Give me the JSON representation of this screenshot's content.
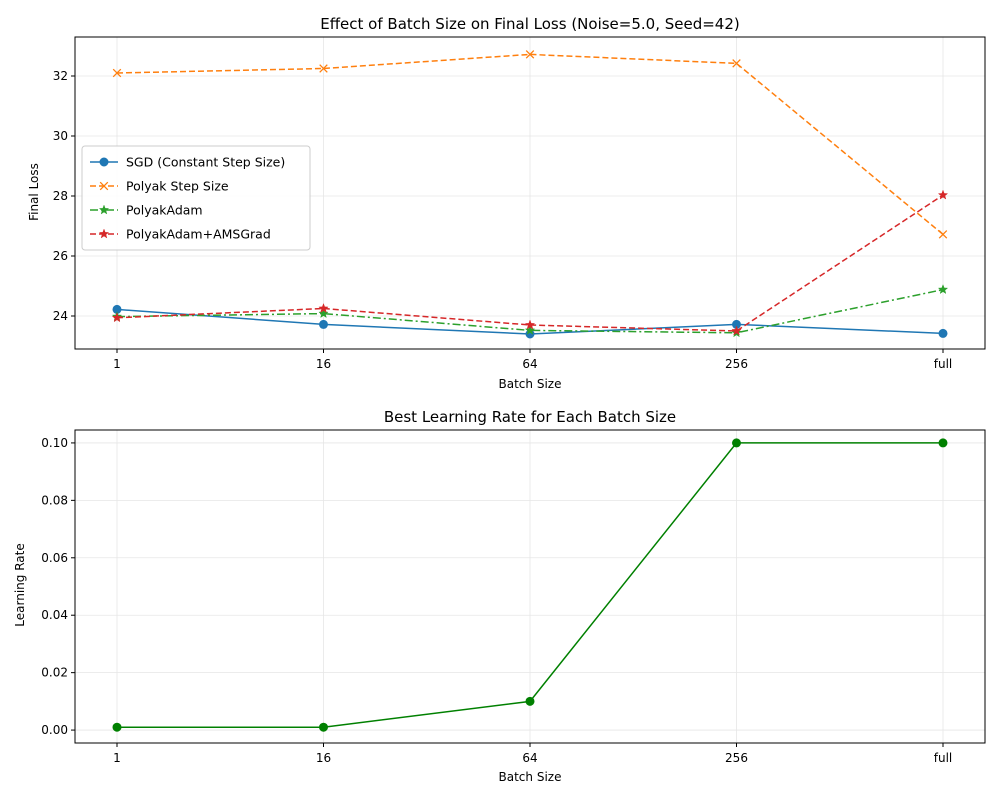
{
  "chart_data": [
    {
      "type": "line",
      "title": "Effect of Batch Size on Final Loss (Noise=5.0, Seed=42)",
      "xlabel": "Batch Size",
      "ylabel": "Final Loss",
      "categories": [
        "1",
        "16",
        "64",
        "256",
        "full"
      ],
      "ylim": [
        22.9,
        33.3
      ],
      "yticks": [
        24,
        26,
        28,
        30,
        32
      ],
      "grid": true,
      "legend_position": "center-left",
      "series": [
        {
          "name": "SGD (Constant Step Size)",
          "values": [
            24.22,
            23.72,
            23.4,
            23.72,
            23.42
          ],
          "color": "#1f77b4",
          "marker": "circle",
          "dash": "solid"
        },
        {
          "name": "Polyak Step Size",
          "values": [
            32.1,
            32.25,
            32.72,
            32.42,
            26.72
          ],
          "color": "#ff7f0e",
          "marker": "x",
          "dash": "dashed"
        },
        {
          "name": "PolyakAdam",
          "values": [
            23.98,
            24.08,
            23.52,
            23.44,
            24.88
          ],
          "color": "#2ca02c",
          "marker": "star",
          "dash": "dashdot"
        },
        {
          "name": "PolyakAdam+AMSGrad",
          "values": [
            23.94,
            24.25,
            23.7,
            23.5,
            28.03
          ],
          "color": "#d62728",
          "marker": "star",
          "dash": "dashed"
        }
      ]
    },
    {
      "type": "line",
      "title": "Best Learning Rate for Each Batch Size",
      "xlabel": "Batch Size",
      "ylabel": "Learning Rate",
      "categories": [
        "1",
        "16",
        "64",
        "256",
        "full"
      ],
      "ylim": [
        -0.0045,
        0.1045
      ],
      "yticks": [
        "0.00",
        "0.02",
        "0.04",
        "0.06",
        "0.08",
        "0.10"
      ],
      "grid": true,
      "series": [
        {
          "values": [
            0.001,
            0.001,
            0.01,
            0.1,
            0.1
          ],
          "color": "#008000",
          "marker": "circle",
          "dash": "solid"
        }
      ]
    }
  ]
}
